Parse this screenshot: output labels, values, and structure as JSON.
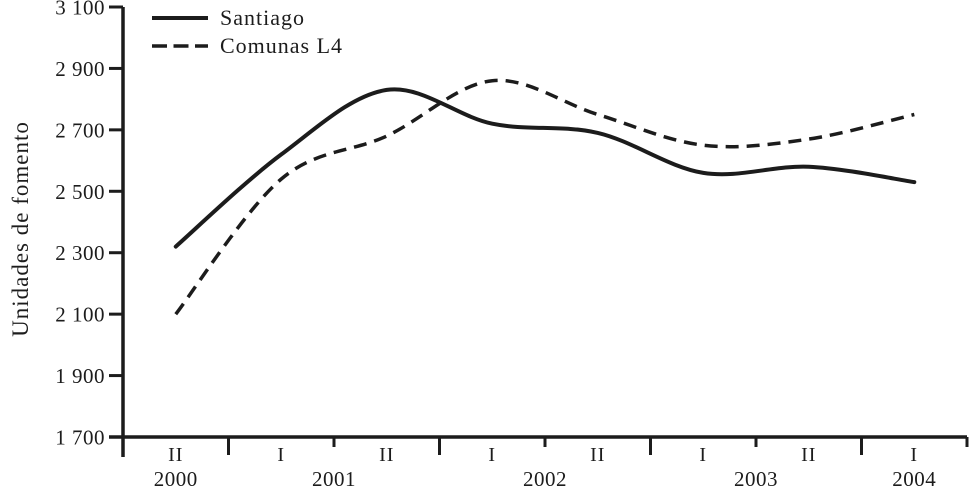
{
  "chart_data": {
    "type": "line",
    "title": "",
    "ylabel": "Unidades de fomento",
    "xlabel": "",
    "grid": false,
    "legend_position": "top-left",
    "line_color": "#1c1c1c",
    "background_color": "#ffffff",
    "ylim": [
      1700,
      3100
    ],
    "y_tick_step": 200,
    "y_ticks": [
      "1 700",
      "1 900",
      "2 100",
      "2 300",
      "2 500",
      "2 700",
      "2 900",
      "3 100"
    ],
    "x_categories": [
      {
        "semester": "II",
        "year": "2000"
      },
      {
        "semester": "I",
        "year": "2001"
      },
      {
        "semester": "II",
        "year": "2001"
      },
      {
        "semester": "I",
        "year": "2002"
      },
      {
        "semester": "II",
        "year": "2002"
      },
      {
        "semester": "I",
        "year": "2003"
      },
      {
        "semester": "II",
        "year": "2003"
      },
      {
        "semester": "I",
        "year": "2004"
      }
    ],
    "year_labels": [
      "2000",
      "2001",
      "2002",
      "2003",
      "2004"
    ],
    "series": [
      {
        "name": "Santiago",
        "style": "solid",
        "values": [
          2320,
          2620,
          2830,
          2720,
          2690,
          2560,
          2580,
          2530
        ]
      },
      {
        "name": "Comunas L4",
        "style": "dashed",
        "values": [
          2100,
          2540,
          2680,
          2860,
          2750,
          2650,
          2670,
          2750
        ]
      }
    ]
  }
}
